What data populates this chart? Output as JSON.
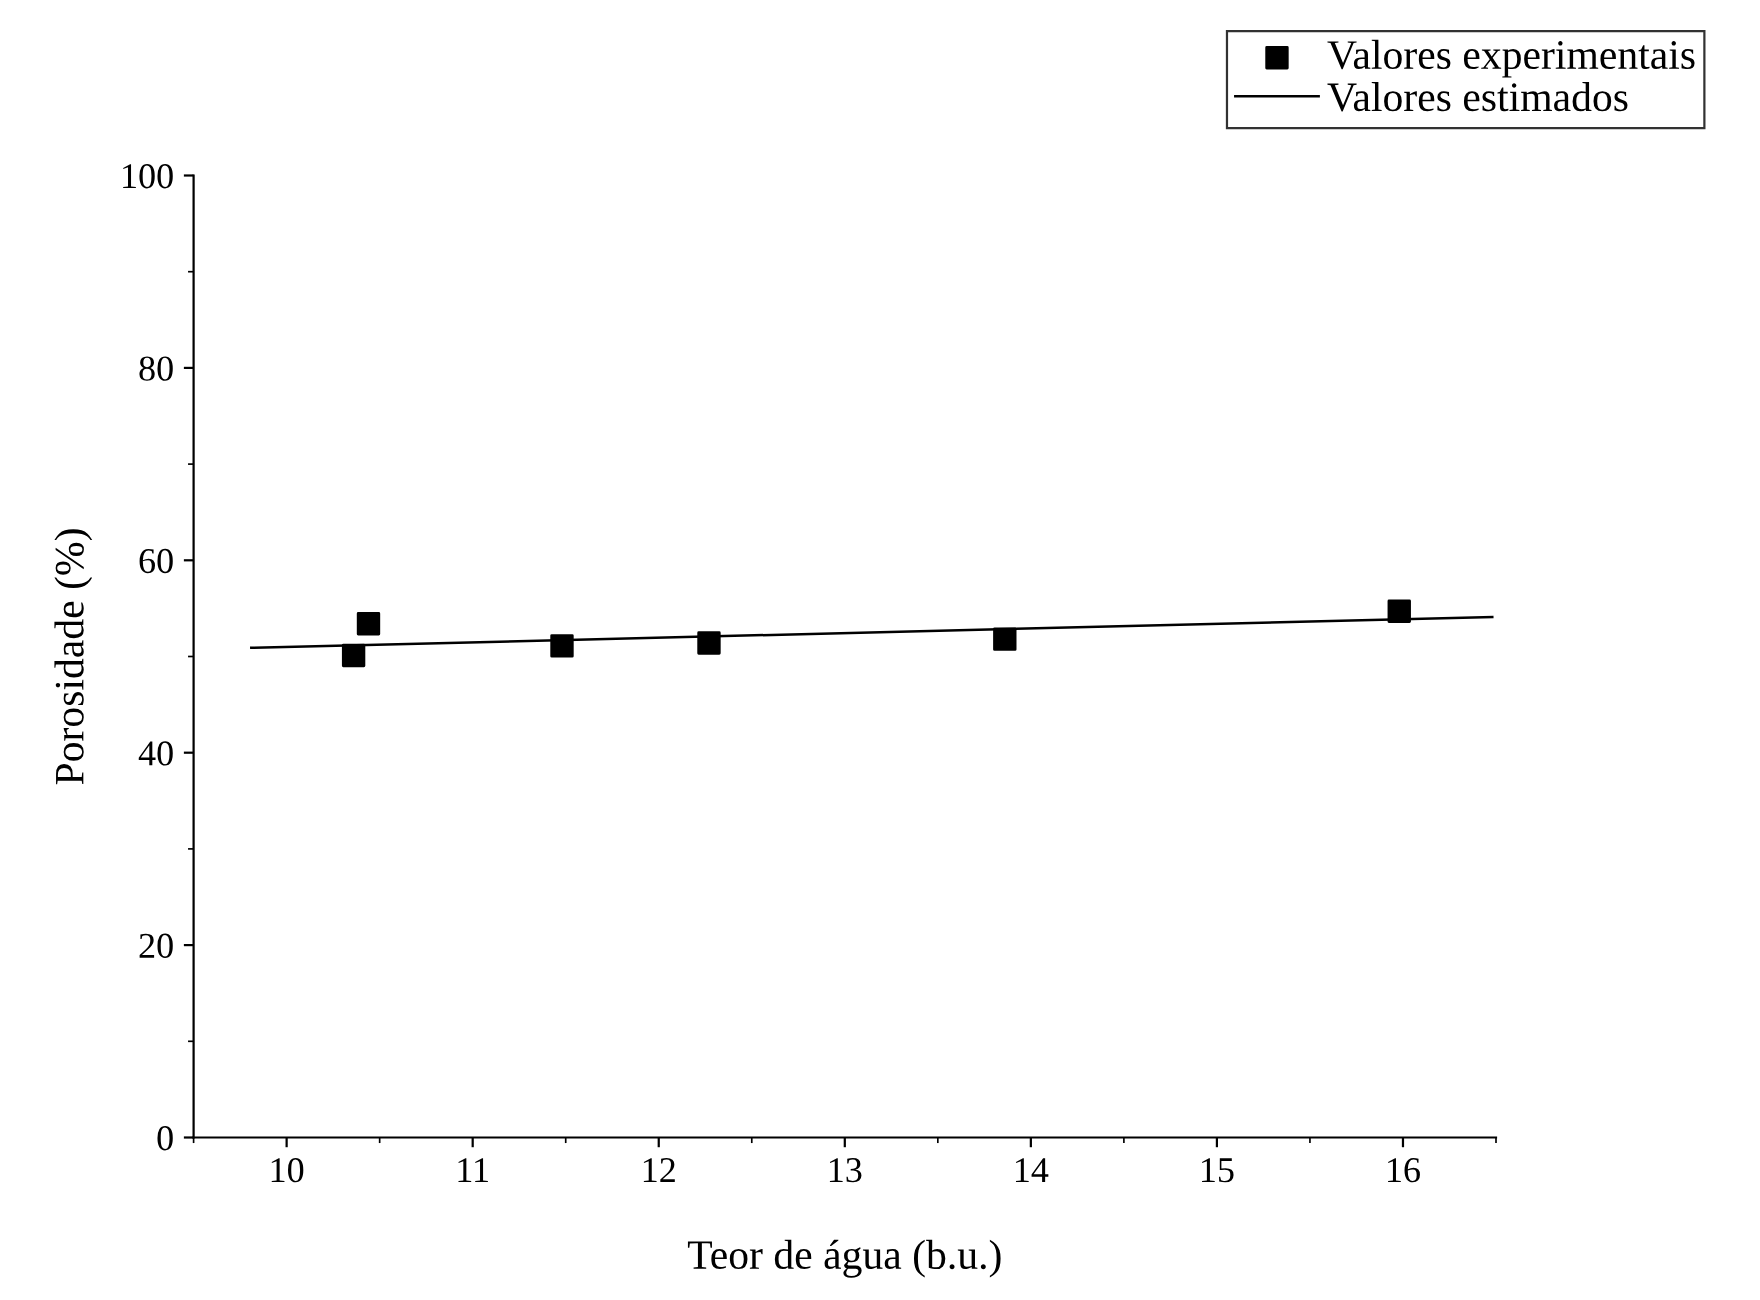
{
  "chart_data": {
    "type": "scatter",
    "xlabel": "Teor de água (b.u.)",
    "ylabel": "Porosidade (%)",
    "xlim": [
      9.5,
      16.5
    ],
    "xticks": [
      10,
      11,
      12,
      13,
      14,
      15,
      16
    ],
    "ylim": [
      0,
      100
    ],
    "yticks": [
      0,
      20,
      40,
      60,
      80,
      100
    ],
    "grid": false,
    "legend": "top right",
    "series": [
      {
        "name": "Valores experimentais",
        "marker": "square",
        "color": "#000000",
        "x": [
          10.36,
          10.44,
          11.48,
          12.27,
          13.86,
          15.98
        ],
        "values": [
          50.1,
          53.4,
          51.1,
          51.4,
          51.8,
          54.7
        ]
      },
      {
        "name": "Valores estimados",
        "type": "line",
        "color": "#000000",
        "line_style": "solid",
        "x": [
          9.81,
          16.48
        ],
        "values": [
          50.9,
          54.1
        ]
      }
    ]
  }
}
